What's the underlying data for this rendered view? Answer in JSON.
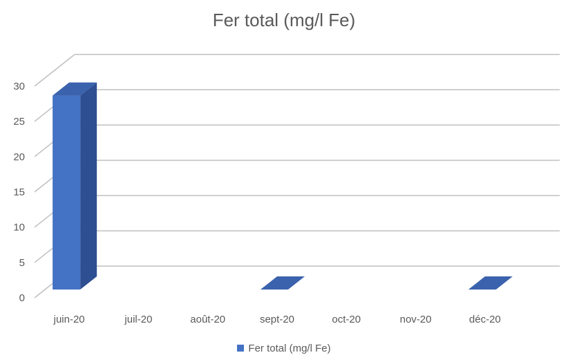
{
  "chart_data": {
    "type": "bar",
    "title": "Fer total (mg/l Fe)",
    "categories": [
      "juin-20",
      "juil-20",
      "août-20",
      "sept-20",
      "oct-20",
      "nov-20",
      "déc-20"
    ],
    "series": [
      {
        "name": "Fer total (mg/l Fe)",
        "values": [
          27.5,
          null,
          null,
          0,
          null,
          null,
          0
        ]
      }
    ],
    "yticks": [
      "0",
      "5",
      "10",
      "15",
      "20",
      "25",
      "30"
    ],
    "ylim": [
      0,
      30
    ],
    "grid": true,
    "legend_position": "bottom",
    "style": "3d-column"
  },
  "colors": {
    "bar_front": "#4472C4",
    "bar_side": "#2E4F91",
    "bar_top": "#3A62AD",
    "grid": "#BFBFBF",
    "text": "#595959"
  }
}
